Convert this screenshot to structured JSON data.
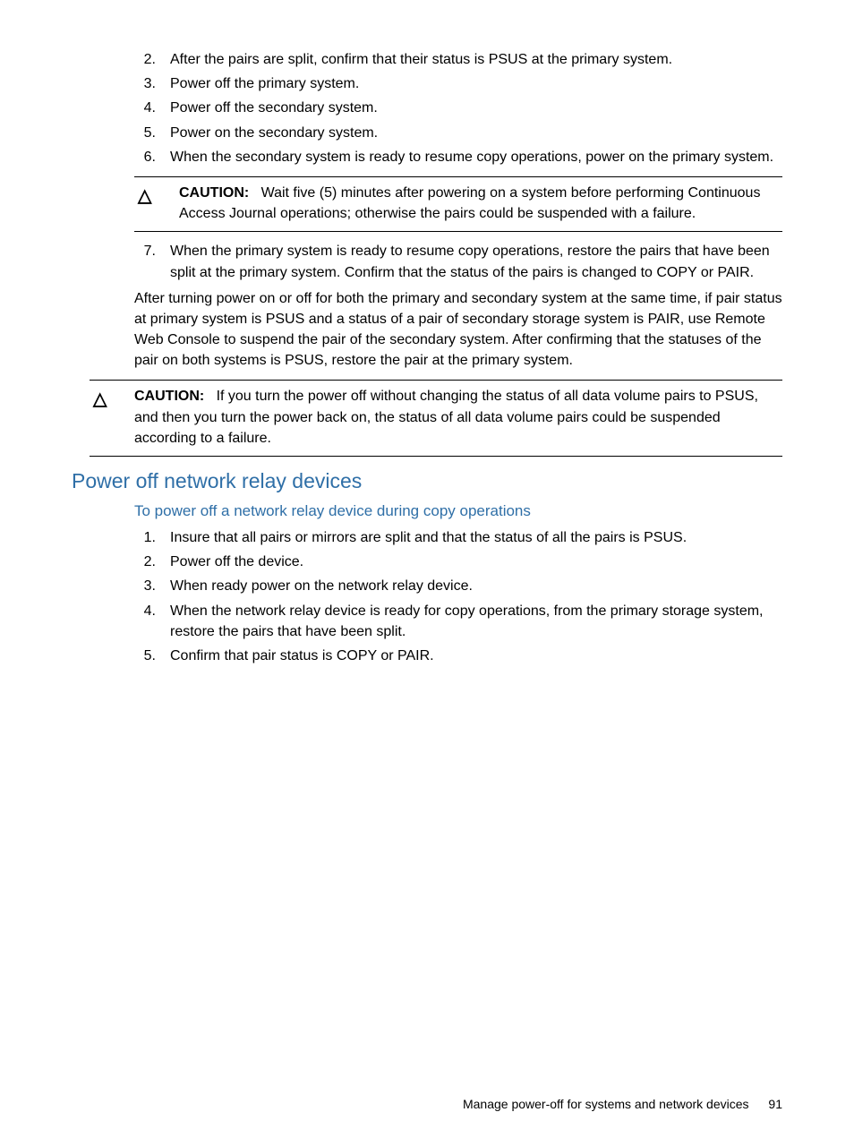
{
  "list1": {
    "items": [
      {
        "n": "2.",
        "t": "After the pairs are split, confirm that their status is PSUS at the primary system."
      },
      {
        "n": "3.",
        "t": "Power off the primary system."
      },
      {
        "n": "4.",
        "t": "Power off the secondary system."
      },
      {
        "n": "5.",
        "t": "Power on the secondary system."
      },
      {
        "n": "6.",
        "t": "When the secondary system is ready to resume copy operations, power on the primary system."
      }
    ]
  },
  "caution1": {
    "label": "CAUTION:",
    "text": "Wait five (5) minutes after powering on a system before performing Continuous Access Journal operations; otherwise the pairs could be suspended with a failure."
  },
  "list1b": {
    "items": [
      {
        "n": "7.",
        "t": "When the primary system is ready to resume copy operations, restore the pairs that have been split at the primary system. Confirm that the status of the pairs is changed to COPY or PAIR."
      }
    ]
  },
  "after_para": "After turning power on or off for both the primary and secondary system at the same time, if pair status at primary system is PSUS and a status of a pair of secondary storage system is PAIR, use Remote Web Console to suspend the pair of the secondary system. After confirming that the statuses of the pair on both systems is PSUS, restore the pair at the primary system.",
  "caution2": {
    "label": "CAUTION:",
    "text": "If you turn the power off without changing the status of all data volume pairs to PSUS, and then you turn the power back on, the status of all data volume pairs could be suspended according to a failure."
  },
  "h2": "Power off network relay devices",
  "h3": "To power off a network relay device during copy operations",
  "list2": {
    "items": [
      {
        "n": "1.",
        "t": "Insure that all pairs or mirrors are split and that the status of all the pairs is PSUS."
      },
      {
        "n": "2.",
        "t": "Power off the device."
      },
      {
        "n": "3.",
        "t": "When ready power on the network relay device."
      },
      {
        "n": "4.",
        "t": "When the network relay device is ready for copy operations, from the primary storage system, restore the pairs that have been split."
      },
      {
        "n": "5.",
        "t": "Confirm that pair status is COPY or PAIR."
      }
    ]
  },
  "footer": {
    "text": "Manage power-off for systems and network devices",
    "page": "91"
  },
  "icon": "△"
}
